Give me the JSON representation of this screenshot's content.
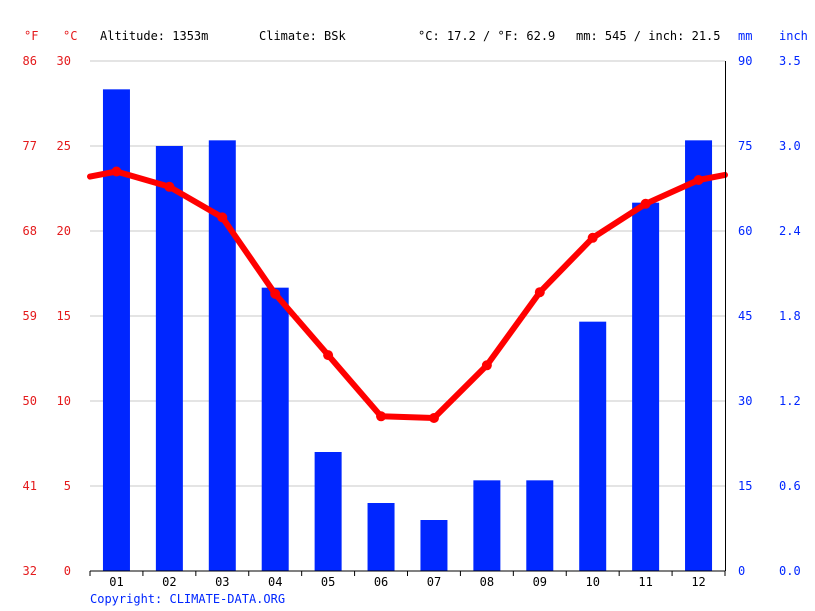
{
  "header": {
    "unit_f": "°F",
    "unit_c": "°C",
    "altitude": "Altitude: 1353m",
    "climate": "Climate: BSk",
    "temp_avg": "°C: 17.2 / °F: 62.9",
    "precip_avg": "mm: 545 / inch: 21.5",
    "unit_mm": "mm",
    "unit_inch": "inch"
  },
  "copyright": "Copyright: CLIMATE-DATA.ORG",
  "colors": {
    "temperature": "#ff0000",
    "precipitation": "#0026ff",
    "axis_red": "#e41a1c",
    "grid": "#c8c8c8"
  },
  "chart_data": {
    "type": "bar",
    "categories": [
      "01",
      "02",
      "03",
      "04",
      "05",
      "06",
      "07",
      "08",
      "09",
      "10",
      "11",
      "12"
    ],
    "series": [
      {
        "type": "bar",
        "axis": "right",
        "values": [
          85,
          75,
          76,
          50,
          21,
          12,
          9,
          16,
          16,
          44,
          65,
          76
        ]
      },
      {
        "type": "line",
        "axis": "left",
        "values": [
          23.5,
          22.6,
          20.8,
          16.3,
          12.7,
          9.1,
          9.0,
          12.1,
          16.4,
          19.6,
          21.6,
          23.0
        ],
        "edge_start": 23.2,
        "edge_end": 23.3
      }
    ],
    "left_axis_c": {
      "ylim": [
        0,
        30
      ],
      "ticks": [
        "0",
        "5",
        "10",
        "15",
        "20",
        "25",
        "30"
      ]
    },
    "left_axis_f": {
      "ticks": [
        "32",
        "41",
        "50",
        "59",
        "68",
        "77",
        "86"
      ]
    },
    "right_axis_mm": {
      "ylim": [
        0,
        90
      ],
      "ticks": [
        "0",
        "15",
        "30",
        "45",
        "60",
        "75",
        "90"
      ]
    },
    "right_axis_inch": {
      "ticks": [
        "0.0",
        "0.6",
        "1.2",
        "1.8",
        "2.4",
        "3.0",
        "3.5"
      ]
    },
    "grid": true
  }
}
